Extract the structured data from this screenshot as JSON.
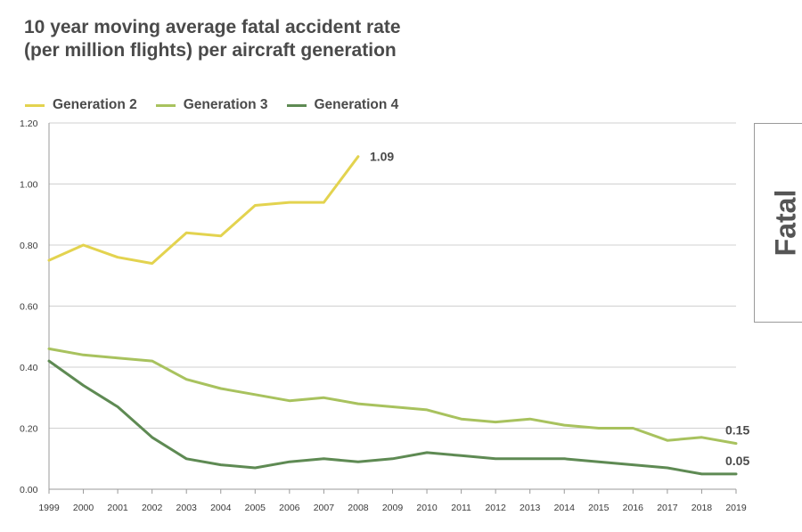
{
  "title_lines": [
    "10 year moving average fatal accident rate",
    "(per million flights) per aircraft generation"
  ],
  "side_tab_label": "Fatal",
  "colors": {
    "gen2": "#e3d34f",
    "gen3": "#a8c25e",
    "gen4": "#5e8a53",
    "grid": "#d0d0d0",
    "axis": "#9a9a9a"
  },
  "chart_data": {
    "type": "line",
    "x": [
      1999,
      2000,
      2001,
      2002,
      2003,
      2004,
      2005,
      2006,
      2007,
      2008,
      2009,
      2010,
      2011,
      2012,
      2013,
      2014,
      2015,
      2016,
      2017,
      2018,
      2019
    ],
    "ylim": [
      0,
      1.2
    ],
    "yticks": [
      "0.00",
      "0.20",
      "0.40",
      "0.60",
      "0.80",
      "1.00",
      "1.20"
    ],
    "grid": true,
    "legend_position": "top-left",
    "series": [
      {
        "name": "Generation 2",
        "color": "#e3d34f",
        "values": [
          0.75,
          0.8,
          0.76,
          0.74,
          0.84,
          0.83,
          0.93,
          0.94,
          0.94,
          1.09,
          null,
          null,
          null,
          null,
          null,
          null,
          null,
          null,
          null,
          null,
          null
        ],
        "end_label": "1.09"
      },
      {
        "name": "Generation 3",
        "color": "#a8c25e",
        "values": [
          0.46,
          0.44,
          0.43,
          0.42,
          0.36,
          0.33,
          0.31,
          0.29,
          0.3,
          0.28,
          0.27,
          0.26,
          0.23,
          0.22,
          0.23,
          0.21,
          0.2,
          0.2,
          0.16,
          0.17,
          0.15
        ],
        "end_label": "0.15"
      },
      {
        "name": "Generation 4",
        "color": "#5e8a53",
        "values": [
          0.42,
          0.34,
          0.27,
          0.17,
          0.1,
          0.08,
          0.07,
          0.09,
          0.1,
          0.09,
          0.1,
          0.12,
          0.11,
          0.1,
          0.1,
          0.1,
          0.09,
          0.08,
          0.07,
          0.05,
          0.05
        ],
        "end_label": "0.05"
      }
    ]
  }
}
